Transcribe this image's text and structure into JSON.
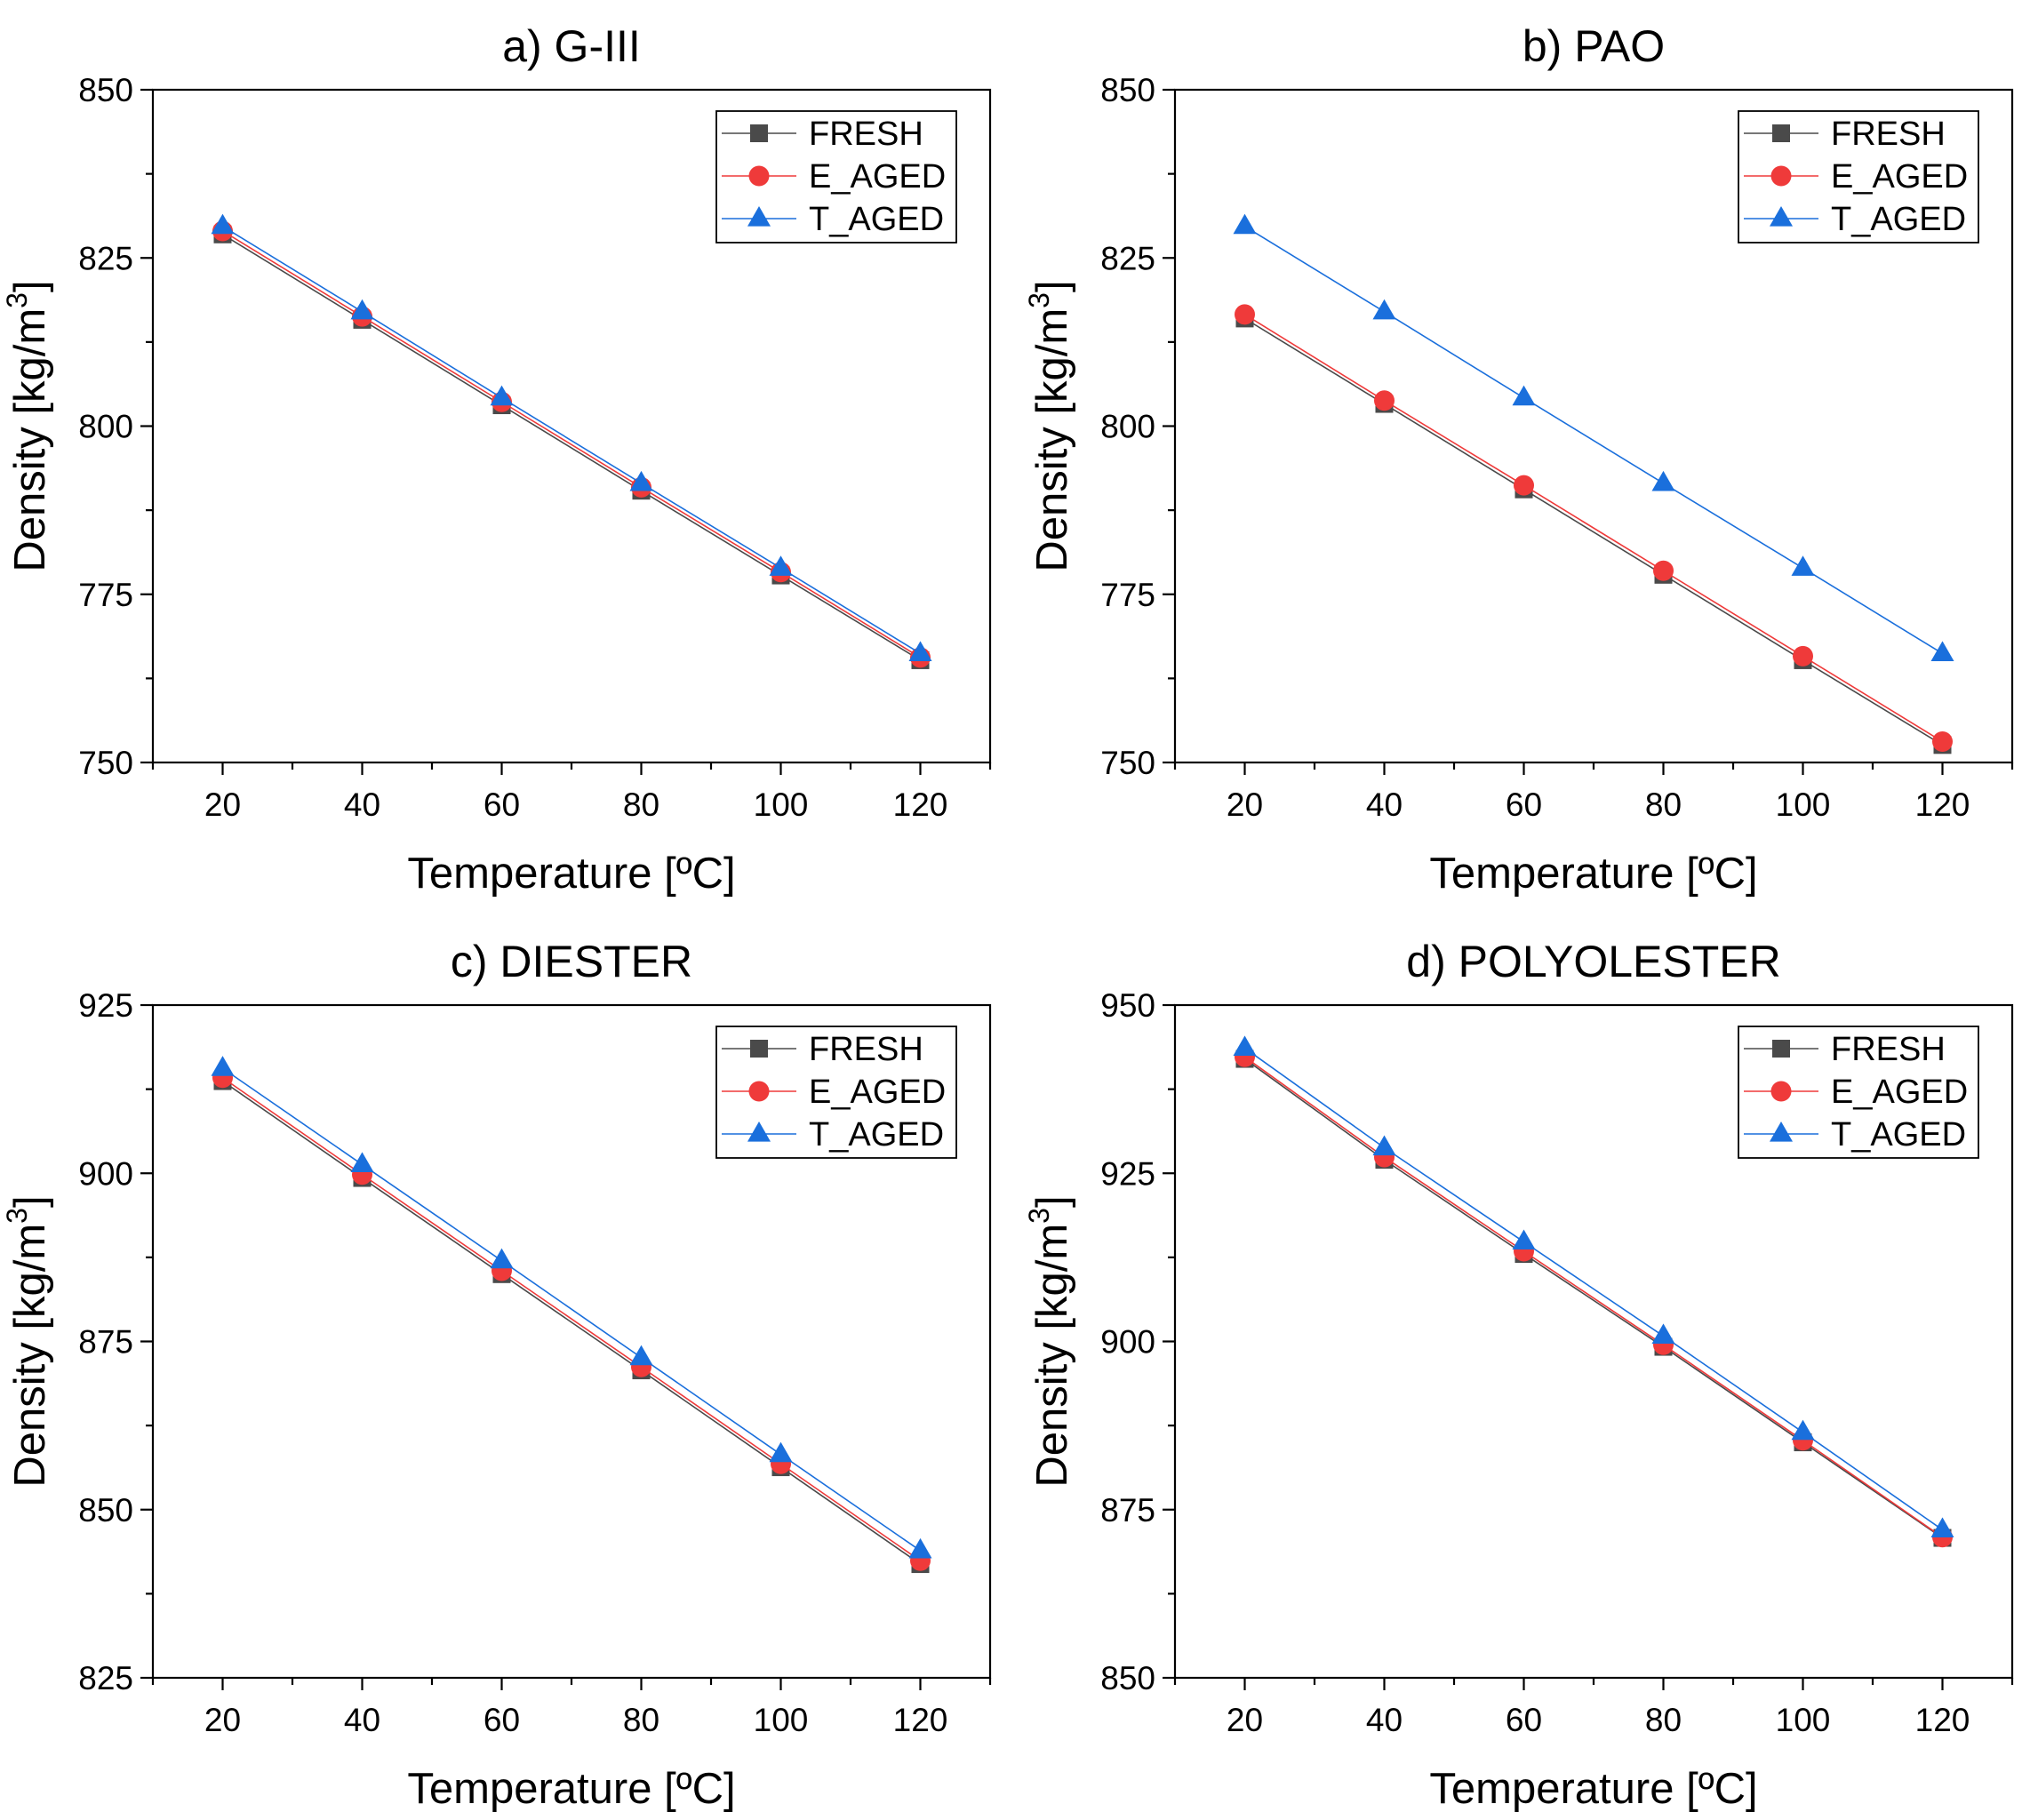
{
  "chart_data": [
    {
      "type": "line",
      "title": "a) G-III",
      "xlabel": "Temperature [ºC]",
      "ylabel": "Density [kg/m3]",
      "x": [
        20,
        40,
        60,
        80,
        100,
        120
      ],
      "xlim": [
        10,
        130
      ],
      "ylim": [
        750,
        850
      ],
      "xticks": [
        20,
        40,
        60,
        80,
        100,
        120
      ],
      "yticks": [
        750,
        775,
        800,
        825,
        850
      ],
      "legend_position": "top-right",
      "series": [
        {
          "name": "FRESH",
          "marker": "square",
          "color": "#4a4a4a",
          "values": [
            828.5,
            815.8,
            803.1,
            790.4,
            777.8,
            765.2
          ]
        },
        {
          "name": "E_AGED",
          "marker": "circle",
          "color": "#ef3a3a",
          "values": [
            829.0,
            816.3,
            803.6,
            790.9,
            778.3,
            765.6
          ]
        },
        {
          "name": "T_AGED",
          "marker": "triangle",
          "color": "#1a6fdc",
          "values": [
            829.7,
            817.0,
            804.2,
            791.5,
            778.9,
            766.2
          ]
        }
      ]
    },
    {
      "type": "line",
      "title": "b) PAO",
      "xlabel": "Temperature [ºC]",
      "ylabel": "Density [kg/m3]",
      "x": [
        20,
        40,
        60,
        80,
        100,
        120
      ],
      "xlim": [
        10,
        130
      ],
      "ylim": [
        750,
        850
      ],
      "xticks": [
        20,
        40,
        60,
        80,
        100,
        120
      ],
      "yticks": [
        750,
        775,
        800,
        825,
        850
      ],
      "legend_position": "top-right",
      "series": [
        {
          "name": "FRESH",
          "marker": "square",
          "color": "#4a4a4a",
          "values": [
            816.0,
            803.3,
            790.6,
            777.9,
            765.2,
            752.6
          ]
        },
        {
          "name": "E_AGED",
          "marker": "circle",
          "color": "#ef3a3a",
          "values": [
            816.6,
            803.8,
            791.2,
            778.5,
            765.8,
            753.1
          ]
        },
        {
          "name": "T_AGED",
          "marker": "triangle",
          "color": "#1a6fdc",
          "values": [
            829.7,
            817.0,
            804.2,
            791.5,
            778.9,
            766.2
          ]
        }
      ]
    },
    {
      "type": "line",
      "title": "c) DIESTER",
      "xlabel": "Temperature [ºC]",
      "ylabel": "Density [kg/m3]",
      "x": [
        20,
        40,
        60,
        80,
        100,
        120
      ],
      "xlim": [
        10,
        130
      ],
      "ylim": [
        825,
        925
      ],
      "xticks": [
        20,
        40,
        60,
        80,
        100,
        120
      ],
      "yticks": [
        825,
        850,
        875,
        900,
        925
      ],
      "legend_position": "top-right",
      "series": [
        {
          "name": "FRESH",
          "marker": "square",
          "color": "#4a4a4a",
          "values": [
            913.7,
            899.3,
            885.0,
            870.7,
            856.3,
            841.9
          ]
        },
        {
          "name": "E_AGED",
          "marker": "circle",
          "color": "#ef3a3a",
          "values": [
            914.2,
            899.8,
            885.5,
            871.2,
            856.8,
            842.4
          ]
        },
        {
          "name": "T_AGED",
          "marker": "triangle",
          "color": "#1a6fdc",
          "values": [
            915.6,
            901.3,
            887.0,
            872.6,
            858.2,
            843.9
          ]
        }
      ]
    },
    {
      "type": "line",
      "title": "d) POLYOLESTER",
      "xlabel": "Temperature [ºC]",
      "ylabel": "Density [kg/m3]",
      "x": [
        20,
        40,
        60,
        80,
        100,
        120
      ],
      "xlim": [
        10,
        130
      ],
      "ylim": [
        850,
        950
      ],
      "xticks": [
        20,
        40,
        60,
        80,
        100,
        120
      ],
      "yticks": [
        850,
        875,
        900,
        925,
        950
      ],
      "legend_position": "top-right",
      "series": [
        {
          "name": "FRESH",
          "marker": "square",
          "color": "#4a4a4a",
          "values": [
            942.0,
            927.0,
            913.0,
            899.2,
            885.0,
            870.8
          ]
        },
        {
          "name": "E_AGED",
          "marker": "circle",
          "color": "#ef3a3a",
          "values": [
            942.3,
            927.4,
            913.4,
            899.5,
            885.3,
            870.9
          ]
        },
        {
          "name": "T_AGED",
          "marker": "triangle",
          "color": "#1a6fdc",
          "values": [
            943.6,
            928.8,
            914.8,
            900.8,
            886.5,
            872.0
          ]
        }
      ]
    }
  ]
}
